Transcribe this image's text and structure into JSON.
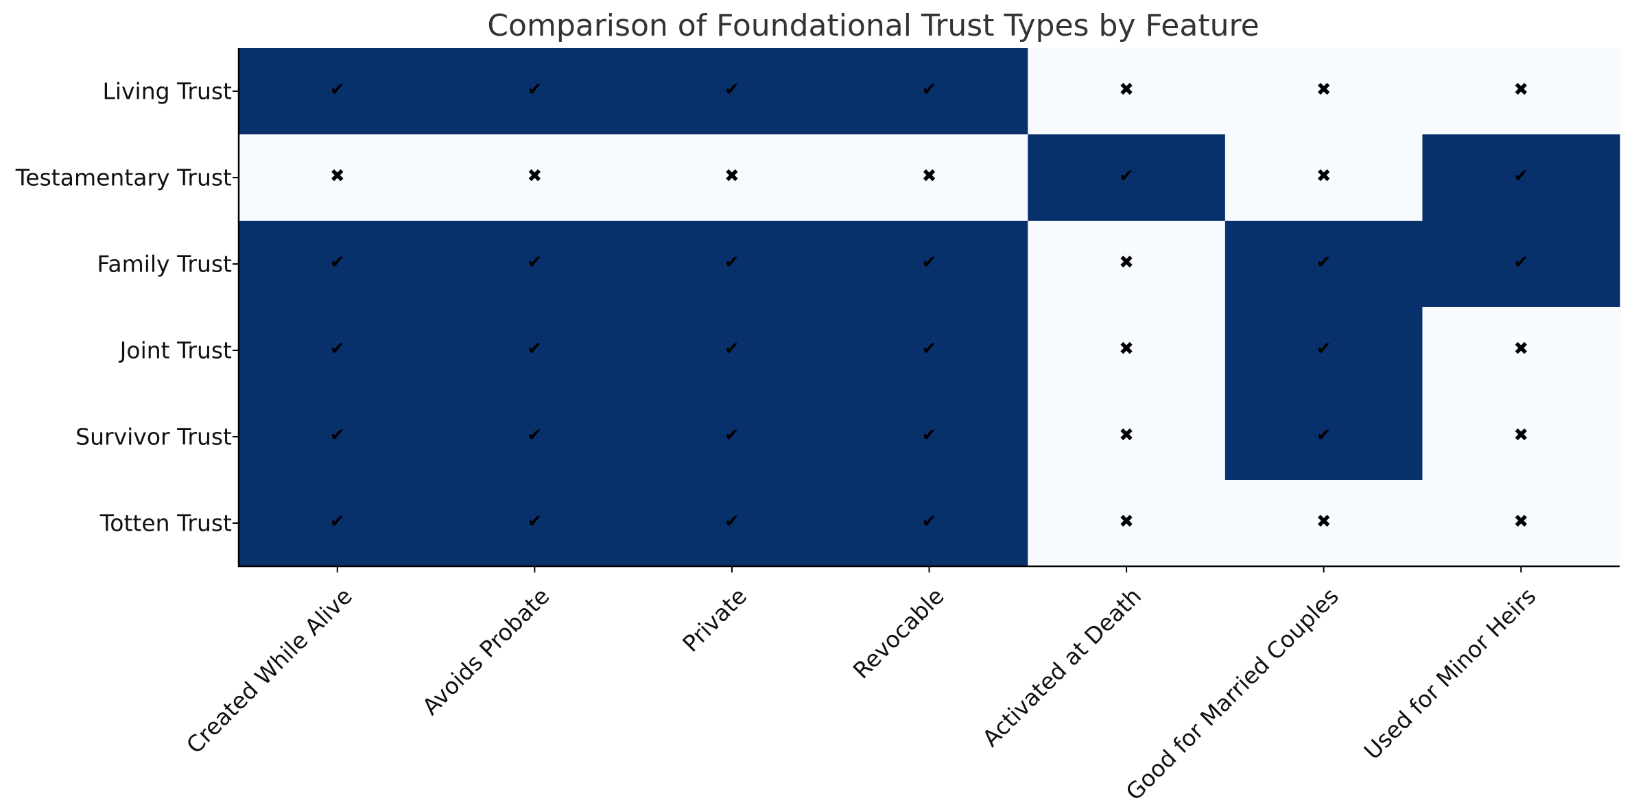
{
  "chart_data": {
    "type": "heatmap",
    "title": "Comparison of Foundational Trust Types by Feature",
    "xlabel": "",
    "ylabel": "",
    "x_categories": [
      "Created While Alive",
      "Avoids Probate",
      "Private",
      "Revocable",
      "Activated at Death",
      "Good for Married Couples",
      "Used for Minor Heirs"
    ],
    "y_categories": [
      "Living Trust",
      "Testamentary Trust",
      "Family Trust",
      "Joint Trust",
      "Survivor Trust",
      "Totten Trust"
    ],
    "values": [
      [
        1,
        1,
        1,
        1,
        0,
        0,
        0
      ],
      [
        0,
        0,
        0,
        0,
        1,
        0,
        1
      ],
      [
        1,
        1,
        1,
        1,
        0,
        1,
        1
      ],
      [
        1,
        1,
        1,
        1,
        0,
        1,
        0
      ],
      [
        1,
        1,
        1,
        1,
        0,
        1,
        0
      ],
      [
        1,
        1,
        1,
        1,
        0,
        0,
        0
      ]
    ],
    "true_mark": "✔",
    "false_mark": "✖",
    "colors": {
      "true": "#08306b",
      "false": "#f7fbff",
      "axis": "#000000",
      "title": "#333333"
    },
    "grid": false,
    "colorbar": false
  }
}
